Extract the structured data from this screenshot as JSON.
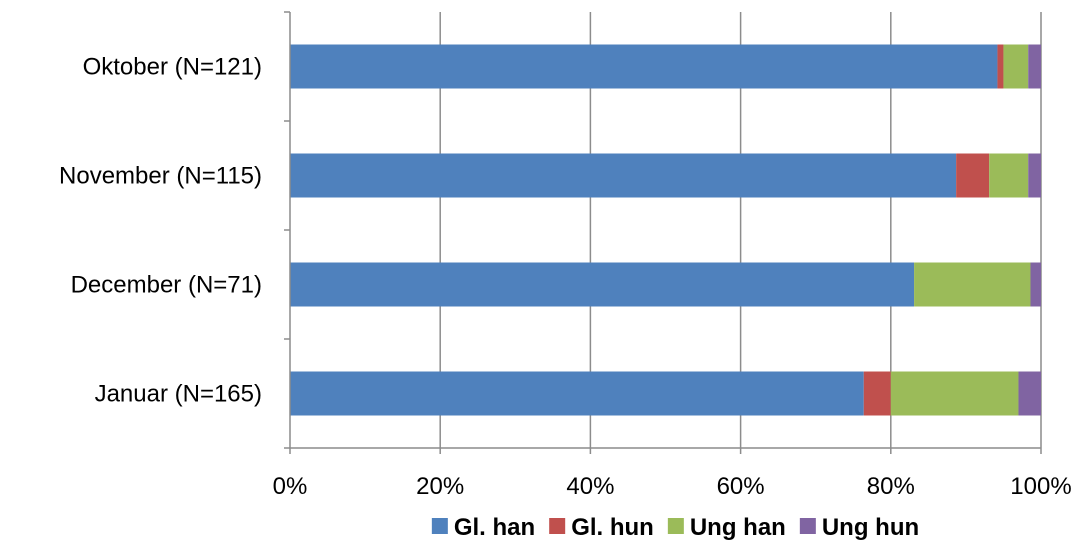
{
  "chart_data": {
    "type": "bar",
    "orientation": "horizontal",
    "stacked": "percent",
    "categories": [
      "Oktober (N=121)",
      "November (N=115)",
      "December (N=71)",
      "Januar (N=165)"
    ],
    "series": [
      {
        "name": "Gl. han",
        "color": "#4f81bd",
        "values": [
          94.2,
          88.7,
          83.1,
          76.4
        ]
      },
      {
        "name": "Gl. hun",
        "color": "#c0504d",
        "values": [
          0.8,
          4.4,
          0.0,
          3.6
        ]
      },
      {
        "name": "Ung han",
        "color": "#9bbb59",
        "values": [
          3.3,
          5.2,
          15.5,
          17.0
        ]
      },
      {
        "name": "Ung hun",
        "color": "#8064a2",
        "values": [
          1.7,
          1.7,
          1.4,
          3.0
        ]
      }
    ],
    "x_ticks": [
      "0%",
      "20%",
      "40%",
      "60%",
      "80%",
      "100%"
    ],
    "xlim": [
      0,
      100
    ],
    "grid": "vertical",
    "legend_position": "bottom"
  }
}
